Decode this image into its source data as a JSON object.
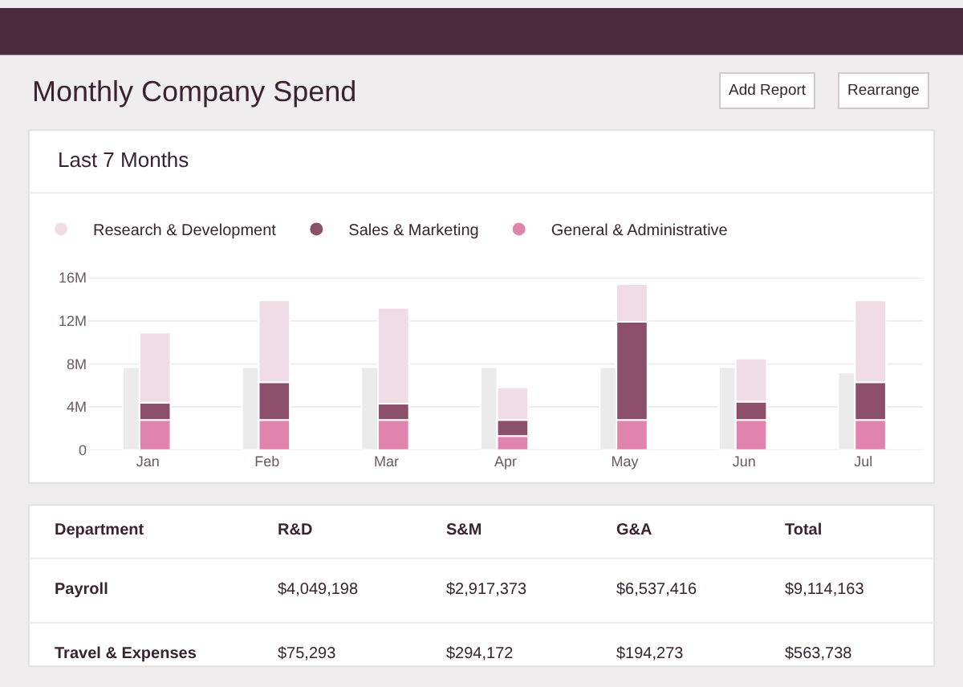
{
  "chart_data": [
    {
      "type": "other",
      "title": "Monthly Company Spend",
      "annotations": [
        "Add Report",
        "Rearrange"
      ]
    },
    {
      "type": "bar",
      "categories": [
        null,
        null,
        null,
        null,
        null,
        null,
        null
      ],
      "color": "#ebebeb",
      "values": [
        7.7,
        7.7,
        7.7,
        7.7,
        7.7,
        7.7,
        7.2
      ],
      "ylim": [
        0,
        16
      ],
      "yticks": [
        0,
        {
          "value": 4,
          "label": "4M"
        },
        {
          "value": 8,
          "label": "8M"
        },
        {
          "value": 12,
          "label": "12M"
        },
        {
          "value": 16,
          "label": "16M"
        }
      ],
      "grid": "y",
      "tick_labels": "y"
    },
    {
      "type": "bar",
      "title": "Last 7 Months",
      "stacked": true,
      "categories": [
        "Jan",
        "Feb",
        "Mar",
        "Apr",
        "May",
        "Jun",
        "Jul"
      ],
      "series": [
        {
          "name": "General & Administrative",
          "color": "#e184ab",
          "values": [
            2.8,
            2.8,
            2.8,
            1.3,
            2.8,
            2.8,
            2.8
          ]
        },
        {
          "name": "Sales & Marketing",
          "color": "#8c4f6a",
          "values": [
            1.6,
            3.5,
            1.5,
            1.5,
            9.1,
            1.7,
            3.5
          ]
        },
        {
          "name": "Research & Development",
          "color": "#f0dce4",
          "values": [
            6.5,
            7.6,
            8.9,
            3.0,
            3.5,
            4.0,
            7.6
          ]
        }
      ],
      "ylim": [
        0,
        16
      ],
      "tick_labels": "x",
      "legend": "top left",
      "marker": "circle"
    },
    {
      "type": "other",
      "annotations": [
        "Department",
        "R&D",
        "S&M",
        "G&A",
        "Total",
        "Payroll",
        "$4,049,198",
        "$2,917,373",
        "$6,537,416",
        "$9,114,163",
        "Travel & Expenses",
        "$75,293",
        "$294,172",
        "$194,273",
        "$563,738"
      ]
    }
  ]
}
